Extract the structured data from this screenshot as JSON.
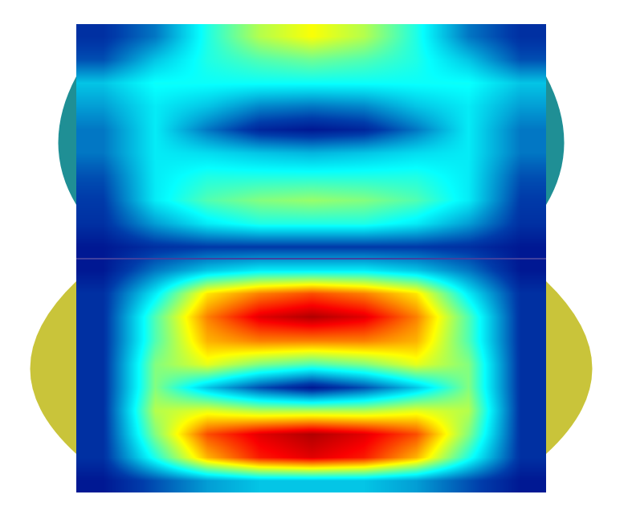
{
  "chart_data": {
    "type": "heatmap",
    "color": "Jet",
    "zlim": [
      0,
      1
    ],
    "tick_labels": false,
    "grid": false,
    "cells": [
      [
        0.1,
        0.2,
        0.4,
        0.55,
        0.62,
        0.55,
        0.4,
        0.2,
        0.1
      ],
      [
        0.15,
        0.3,
        0.4,
        0.45,
        0.48,
        0.45,
        0.4,
        0.3,
        0.15
      ],
      [
        0.3,
        0.38,
        0.38,
        0.38,
        0.38,
        0.38,
        0.38,
        0.38,
        0.3
      ],
      [
        0.25,
        0.35,
        0.3,
        0.22,
        0.2,
        0.22,
        0.3,
        0.35,
        0.25
      ],
      [
        0.2,
        0.35,
        0.2,
        0.08,
        0.05,
        0.08,
        0.2,
        0.35,
        0.2
      ],
      [
        0.2,
        0.35,
        0.33,
        0.3,
        0.28,
        0.3,
        0.33,
        0.35,
        0.2
      ],
      [
        0.15,
        0.35,
        0.4,
        0.4,
        0.4,
        0.4,
        0.4,
        0.35,
        0.15
      ],
      [
        0.12,
        0.35,
        0.45,
        0.5,
        0.52,
        0.5,
        0.45,
        0.35,
        0.12
      ],
      [
        0.1,
        0.25,
        0.35,
        0.4,
        0.4,
        0.4,
        0.35,
        0.25,
        0.1
      ],
      [
        0.05,
        0.1,
        0.12,
        0.12,
        0.12,
        0.12,
        0.12,
        0.1,
        0.05
      ],
      [
        0.05,
        0.2,
        0.3,
        0.35,
        0.35,
        0.35,
        0.3,
        0.2,
        0.05
      ],
      [
        0.1,
        0.35,
        0.65,
        0.75,
        0.8,
        0.75,
        0.65,
        0.35,
        0.1
      ],
      [
        0.1,
        0.45,
        0.75,
        0.9,
        0.95,
        0.9,
        0.75,
        0.45,
        0.1
      ],
      [
        0.1,
        0.45,
        0.7,
        0.75,
        0.75,
        0.75,
        0.7,
        0.45,
        0.1
      ],
      [
        0.1,
        0.5,
        0.6,
        0.5,
        0.45,
        0.5,
        0.6,
        0.5,
        0.1
      ],
      [
        0.1,
        0.5,
        0.3,
        0.15,
        0.05,
        0.15,
        0.3,
        0.5,
        0.1
      ],
      [
        0.1,
        0.55,
        0.6,
        0.55,
        0.55,
        0.55,
        0.6,
        0.55,
        0.1
      ],
      [
        0.1,
        0.5,
        0.8,
        0.9,
        0.95,
        0.9,
        0.8,
        0.5,
        0.1
      ],
      [
        0.1,
        0.4,
        0.7,
        0.85,
        0.9,
        0.85,
        0.7,
        0.4,
        0.1
      ],
      [
        0.05,
        0.15,
        0.25,
        0.3,
        0.3,
        0.3,
        0.25,
        0.15,
        0.05
      ]
    ]
  }
}
